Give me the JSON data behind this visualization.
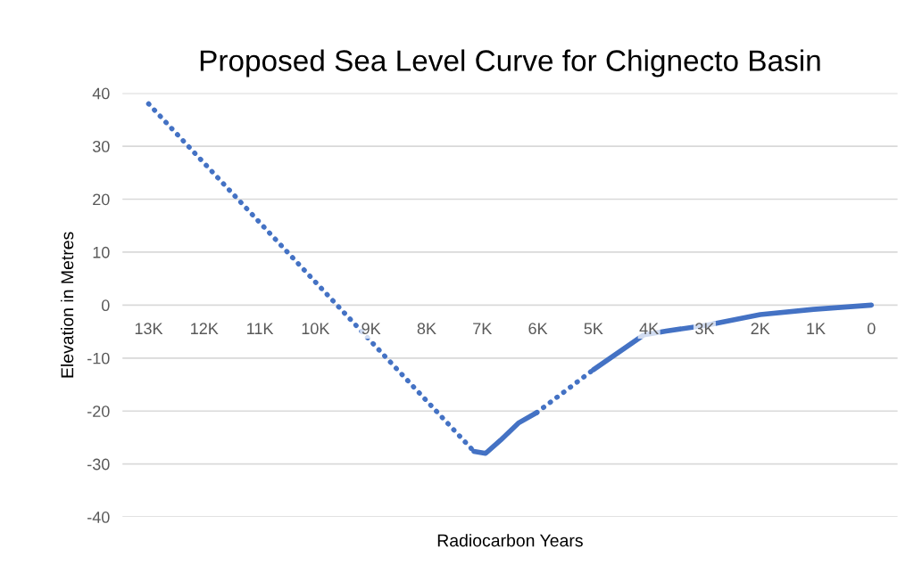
{
  "chart_data": {
    "type": "line",
    "title": "Proposed Sea Level Curve for Chignecto Basin",
    "xlabel": "Radiocarbon Years",
    "ylabel": "Elevation in Metres",
    "series": [
      {
        "color": "#4472c4",
        "line_style": "dotted",
        "x": [
          13000,
          7150
        ],
        "values": [
          38,
          -27.6
        ]
      },
      {
        "color": "#4472c4",
        "line_style": "solid",
        "x": [
          7150,
          6940,
          6670,
          6340,
          6020
        ],
        "values": [
          -27.6,
          -28,
          -25.5,
          -22.2,
          -20.3
        ]
      },
      {
        "color": "#4472c4",
        "line_style": "dotted",
        "x": [
          6020,
          5000
        ],
        "values": [
          -20.3,
          -12.2
        ]
      },
      {
        "color": "#4472c4",
        "line_style": "solid",
        "x": [
          5000,
          4420,
          4090,
          3690,
          2970,
          2000,
          1040,
          0
        ],
        "values": [
          -12.2,
          -8,
          -5.6,
          -4.9,
          -3.8,
          -1.8,
          -0.8,
          0
        ]
      }
    ],
    "xlim": [
      13470,
      -470
    ],
    "xticks": [
      {
        "value": 13000,
        "label": "13K"
      },
      {
        "value": 12000,
        "label": "12K"
      },
      {
        "value": 11000,
        "label": "11K"
      },
      {
        "value": 10000,
        "label": "10K"
      },
      {
        "value": 9000,
        "label": "9K"
      },
      {
        "value": 8000,
        "label": "8K"
      },
      {
        "value": 7000,
        "label": "7K"
      },
      {
        "value": 6000,
        "label": "6K"
      },
      {
        "value": 5000,
        "label": "5K"
      },
      {
        "value": 4000,
        "label": "4K"
      },
      {
        "value": 3000,
        "label": "3K"
      },
      {
        "value": 2000,
        "label": "2K"
      },
      {
        "value": 1000,
        "label": "1K"
      },
      {
        "value": 0,
        "label": "0"
      }
    ],
    "ylim": [
      -40,
      40
    ],
    "yticks": [
      -40,
      -30,
      -20,
      -10,
      0,
      10,
      20,
      30,
      40
    ],
    "grid": "y",
    "legend": false
  }
}
